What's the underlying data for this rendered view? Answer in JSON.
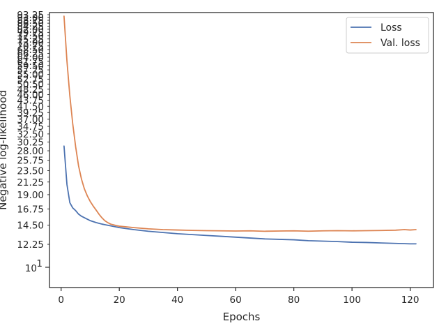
{
  "chart_data": {
    "type": "line",
    "title": "",
    "xlabel": "Epochs",
    "ylabel": "Negative log-likelihood",
    "y_scale": "log",
    "grid": false,
    "legend_position": "top-right",
    "xlim": [
      -4,
      128
    ],
    "ylim": [
      8.36,
      95.0
    ],
    "x_ticks": [
      0,
      20,
      40,
      60,
      80,
      100,
      120
    ],
    "x_tick_labels": [
      "0",
      "20",
      "40",
      "60",
      "80",
      "100",
      "120"
    ],
    "y_ticks": [
      12.25,
      14.5,
      16.75,
      19.0,
      21.25,
      23.5,
      25.75,
      28.0,
      30.25,
      32.5,
      34.75,
      37.0,
      39.25,
      41.5,
      43.75,
      46.0,
      48.25,
      50.5,
      52.75,
      55.0,
      57.25,
      59.5,
      61.75,
      64.0,
      66.25,
      68.5,
      70.75,
      73.0,
      75.25,
      77.5,
      79.75,
      82.0,
      84.25,
      86.5,
      88.75,
      91.0,
      93.25
    ],
    "y_tick_labels": [
      "12.25",
      "14.50",
      "16.75",
      "19.00",
      "21.25",
      "23.50",
      "25.75",
      "28.00",
      "30.25",
      "32.50",
      "34.75",
      "37.00",
      "39.25",
      "41.50",
      "43.75",
      "46.00",
      "48.25",
      "50.50",
      "52.75",
      "55.00",
      "57.25",
      "59.50",
      "61.75",
      "64.00",
      "66.25",
      "68.50",
      "70.75",
      "73.00",
      "75.25",
      "77.50",
      "79.75",
      "82.00",
      "84.25",
      "86.50",
      "88.75",
      "91.00",
      "93.25"
    ],
    "y_major_tick": {
      "value": 10,
      "base": "10",
      "exponent": "1"
    },
    "series": [
      {
        "name": "Loss",
        "color": "#4c72b0",
        "x": [
          1,
          2,
          3,
          4,
          5,
          6,
          7,
          8,
          9,
          10,
          12,
          14,
          16,
          18,
          20,
          25,
          30,
          35,
          40,
          45,
          50,
          55,
          60,
          65,
          70,
          75,
          80,
          85,
          90,
          95,
          100,
          105,
          110,
          115,
          120,
          122
        ],
        "y": [
          29.2,
          20.8,
          17.7,
          16.9,
          16.5,
          16.0,
          15.7,
          15.5,
          15.3,
          15.1,
          14.85,
          14.65,
          14.5,
          14.35,
          14.2,
          13.95,
          13.75,
          13.6,
          13.45,
          13.35,
          13.25,
          13.15,
          13.05,
          12.95,
          12.85,
          12.8,
          12.75,
          12.65,
          12.6,
          12.55,
          12.48,
          12.45,
          12.4,
          12.35,
          12.3,
          12.3
        ]
      },
      {
        "name": "Val. loss",
        "color": "#dd8452",
        "x": [
          1,
          2,
          3,
          4,
          5,
          6,
          7,
          8,
          9,
          10,
          11,
          12,
          13,
          14,
          15,
          16,
          17,
          18,
          19,
          20,
          25,
          30,
          35,
          40,
          45,
          50,
          55,
          60,
          65,
          70,
          75,
          80,
          85,
          90,
          95,
          100,
          105,
          110,
          115,
          118,
          120,
          122
        ],
        "y": [
          92.0,
          62.0,
          45.5,
          35.5,
          29.0,
          24.5,
          21.8,
          20.0,
          18.8,
          17.9,
          17.2,
          16.6,
          16.0,
          15.5,
          15.1,
          14.85,
          14.65,
          14.55,
          14.45,
          14.38,
          14.2,
          14.05,
          13.95,
          13.9,
          13.85,
          13.82,
          13.8,
          13.78,
          13.8,
          13.75,
          13.78,
          13.8,
          13.76,
          13.8,
          13.82,
          13.8,
          13.82,
          13.84,
          13.88,
          13.95,
          13.9,
          13.95
        ]
      }
    ]
  }
}
